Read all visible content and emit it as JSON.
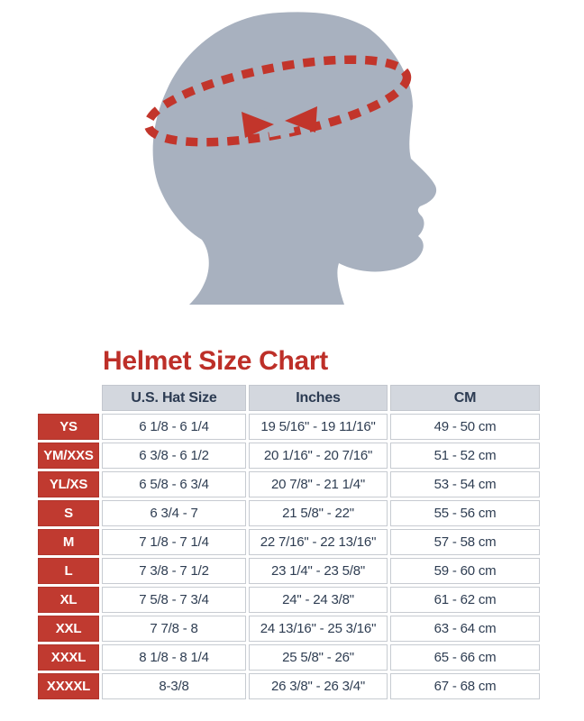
{
  "figure": {
    "illustration": "head-profile-silhouette-with-measuring-tape",
    "head_color": "#a8b1bf",
    "tape_color": "#c2352b"
  },
  "title": {
    "text": "Helmet Size Chart",
    "color": "#bd2f28"
  },
  "table": {
    "columns": [
      "U.S. Hat Size",
      "Inches",
      "CM"
    ],
    "rows": [
      {
        "size": "YS",
        "hat": "6 1/8 - 6 1/4",
        "inches": "19 5/16\" - 19 11/16\"",
        "cm": "49 - 50 cm"
      },
      {
        "size": "YM/XXS",
        "hat": "6 3/8 - 6 1/2",
        "inches": "20 1/16\" - 20 7/16\"",
        "cm": "51 - 52 cm"
      },
      {
        "size": "YL/XS",
        "hat": "6 5/8 - 6 3/4",
        "inches": "20 7/8\" - 21 1/4\"",
        "cm": "53 - 54 cm"
      },
      {
        "size": "S",
        "hat": "6 3/4 - 7",
        "inches": "21 5/8\" - 22\"",
        "cm": "55 - 56 cm"
      },
      {
        "size": "M",
        "hat": "7 1/8 - 7 1/4",
        "inches": "22 7/16\" - 22 13/16\"",
        "cm": "57 - 58 cm"
      },
      {
        "size": "L",
        "hat": "7 3/8 - 7 1/2",
        "inches": "23 1/4\" - 23 5/8\"",
        "cm": "59 - 60 cm"
      },
      {
        "size": "XL",
        "hat": "7 5/8 - 7 3/4",
        "inches": "24\" - 24 3/8\"",
        "cm": "61 - 62 cm"
      },
      {
        "size": "XXL",
        "hat": "7 7/8 - 8",
        "inches": "24 13/16\" - 25 3/16\"",
        "cm": "63 - 64 cm"
      },
      {
        "size": "XXXL",
        "hat": "8 1/8 - 8 1/4",
        "inches": "25 5/8\" - 26\"",
        "cm": "65 - 66 cm"
      },
      {
        "size": "XXXXL",
        "hat": "8-3/8",
        "inches": "26 3/8\" - 26 3/4\"",
        "cm": "67 - 68 cm"
      }
    ]
  }
}
